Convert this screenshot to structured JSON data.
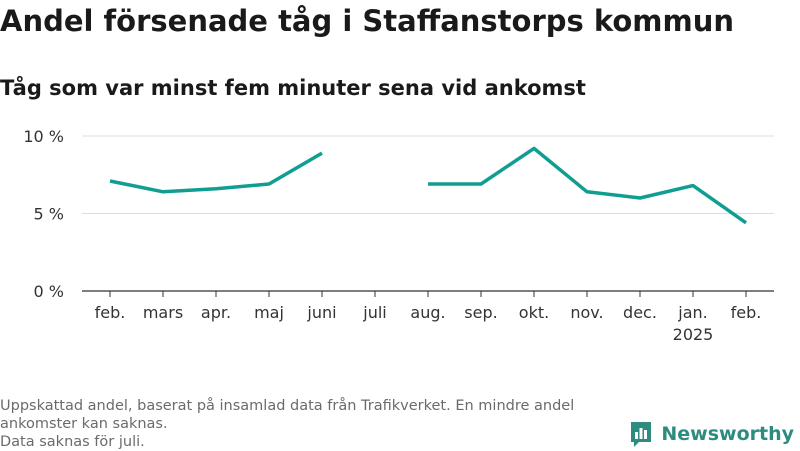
{
  "colors": {
    "line": "#0f9e91",
    "grid": "#dcdcdc",
    "axis": "#333333",
    "brand": "#2e8b80"
  },
  "chart_data": {
    "type": "line",
    "title": "Andel försenade tåg i Staffanstorps kommun",
    "subtitle": "Tåg som var minst fem minuter sena vid ankomst",
    "categories": [
      "feb.",
      "mars",
      "apr.",
      "maj",
      "juni",
      "juli",
      "aug.",
      "sep.",
      "okt.",
      "nov.",
      "dec.",
      "jan.",
      "feb."
    ],
    "category_sublabels": [
      "",
      "",
      "",
      "",
      "",
      "",
      "",
      "",
      "",
      "",
      "",
      "2025",
      ""
    ],
    "series": [
      {
        "values": [
          7.1,
          6.4,
          6.6,
          6.9,
          8.9,
          null,
          6.9,
          6.9,
          9.2,
          6.4,
          6.0,
          6.8,
          4.4
        ]
      }
    ],
    "yticks": [
      0,
      5,
      10
    ],
    "ytick_labels": [
      "0 %",
      "5 %",
      "10 %"
    ],
    "ylim": [
      0,
      10
    ],
    "grid": true,
    "legend": "none"
  },
  "footnote": {
    "line1": "Uppskattad andel, baserat på insamlad data från Trafikverket. En mindre andel ankomster kan saknas.",
    "line2": "Data saknas för juli."
  },
  "brand": {
    "name": "Newsworthy",
    "icon": "newsworthy-logo-icon"
  }
}
